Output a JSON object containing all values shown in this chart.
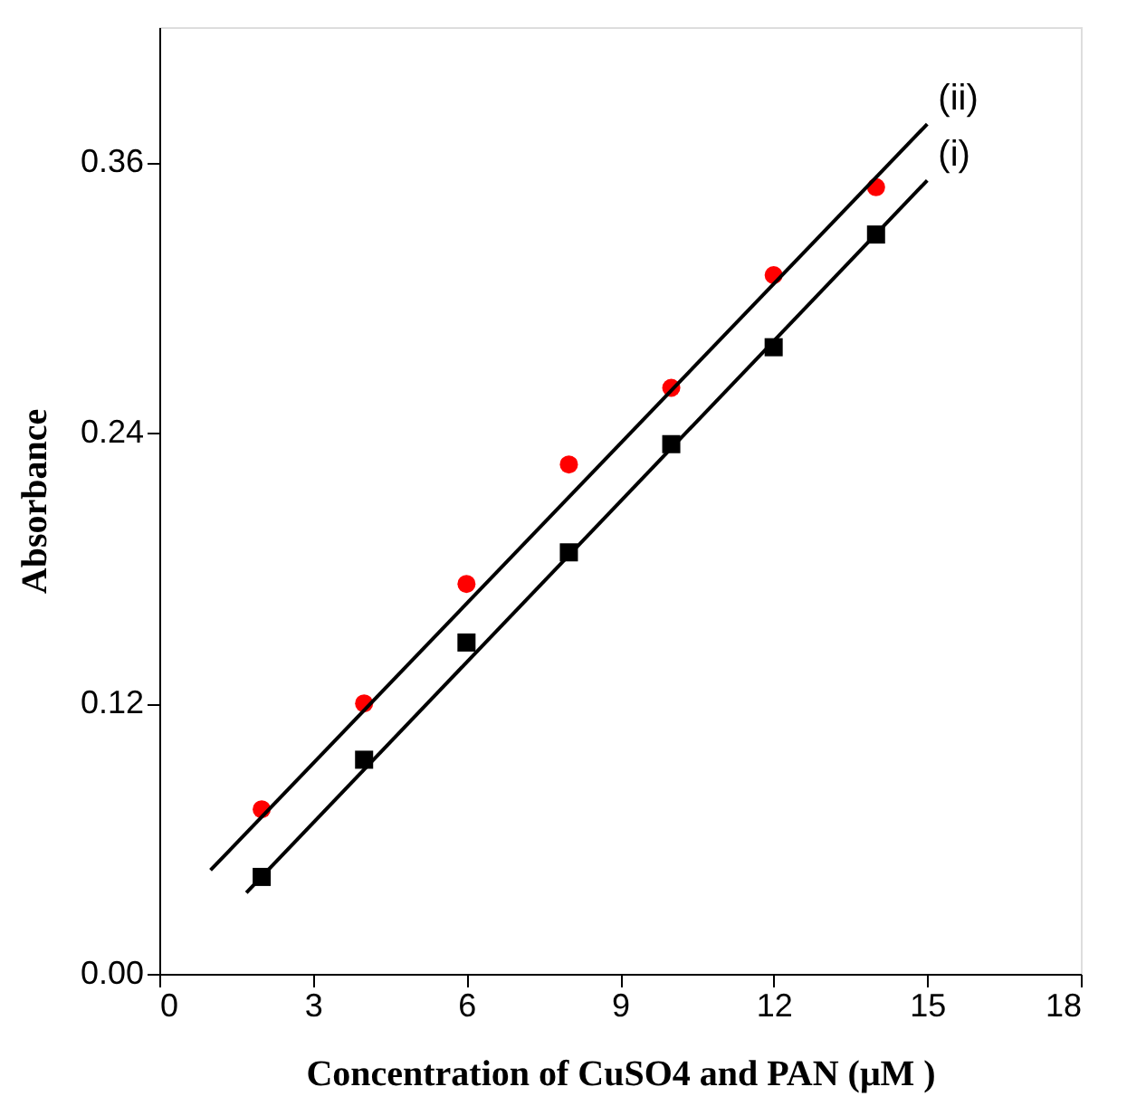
{
  "chart_data": {
    "type": "scatter",
    "xlabel": "Concentration of CuSO4 and PAN (μM )",
    "ylabel": "Absorbance",
    "xlim": [
      0,
      18
    ],
    "ylim": [
      0,
      0.42
    ],
    "xticks": [
      0,
      3,
      6,
      9,
      12,
      15,
      18
    ],
    "yticks": [
      {
        "value": 0,
        "label": "0.00"
      },
      0.12,
      0.24,
      0.36
    ],
    "grid": false,
    "legend": false,
    "series": [
      {
        "marker": "circle",
        "color": "#ff0000",
        "x": [
          2,
          4,
          6,
          8,
          10,
          12,
          14
        ],
        "values": [
          0.073,
          0.12,
          0.173,
          0.226,
          0.26,
          0.31,
          0.349
        ]
      },
      {
        "marker": "square",
        "color": "#000000",
        "x": [
          2,
          4,
          6,
          8,
          10,
          12,
          14
        ],
        "values": [
          0.043,
          0.095,
          0.147,
          0.187,
          0.235,
          0.278,
          0.328
        ]
      },
      {
        "type": "line",
        "name": "(ii)",
        "line_style": "solid",
        "color": "#000000",
        "x": [
          1,
          15
        ],
        "values": [
          0.046,
          0.377
        ]
      },
      {
        "type": "line",
        "name": "(i)",
        "line_style": "solid",
        "color": "#000000",
        "x": [
          1.7,
          15
        ],
        "values": [
          0.036,
          0.352
        ]
      }
    ]
  }
}
